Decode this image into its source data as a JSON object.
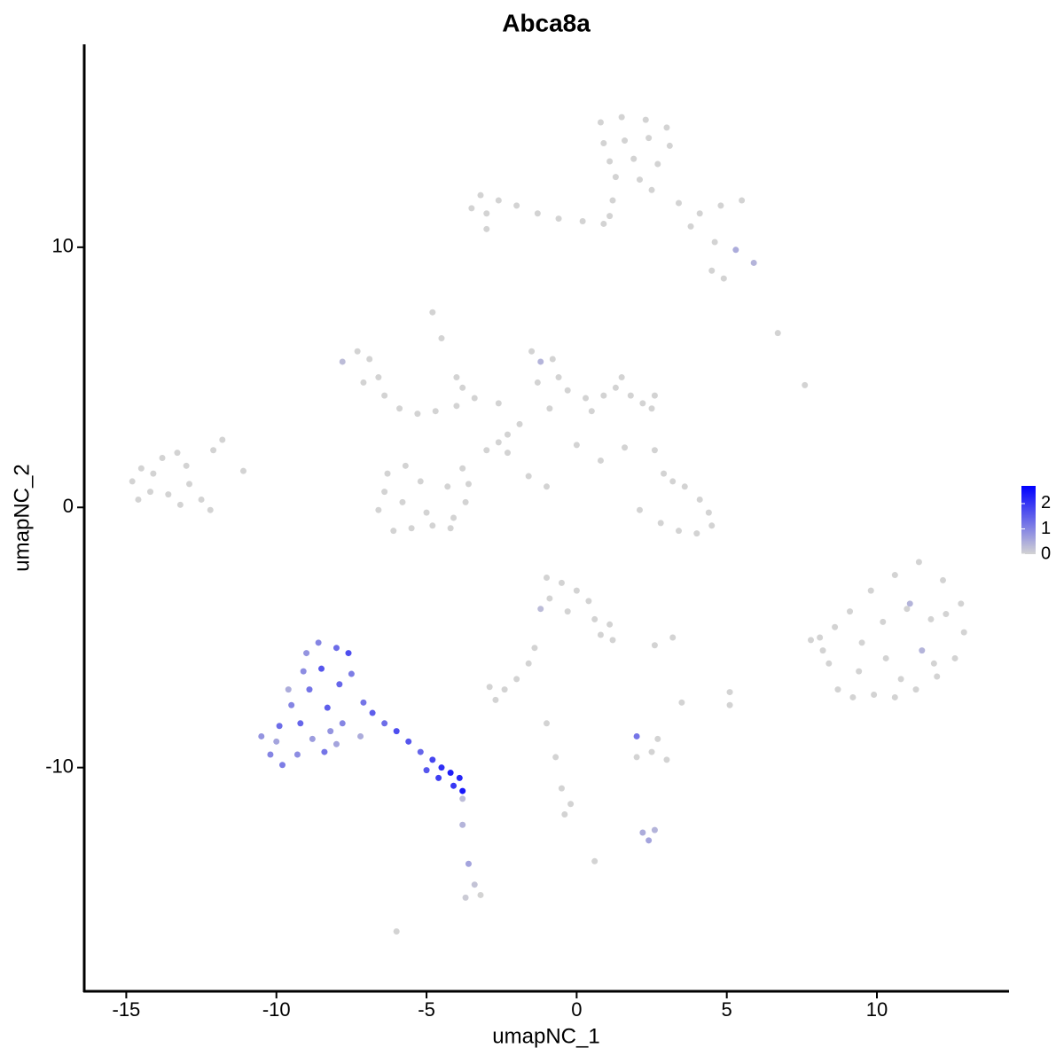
{
  "chart_data": {
    "type": "scatter",
    "title": "Abca8a",
    "x_label": "umapNC_1",
    "y_label": "umapNC_2",
    "xlim": [
      -16.4,
      14.4
    ],
    "ylim": [
      -18.6,
      17.8
    ],
    "xticks": [
      -15,
      -10,
      -5,
      0,
      5,
      10
    ],
    "yticks": [
      -10,
      0,
      10
    ],
    "color_scale": {
      "low": "#d3d3d3",
      "high": "#0000ff",
      "lim": [
        0,
        2.7
      ],
      "ticks": [
        0,
        1,
        2
      ]
    },
    "x": [
      0.8,
      1.5,
      2.3,
      3.0,
      0.9,
      1.6,
      2.4,
      3.1,
      1.1,
      1.9,
      2.7,
      1.3,
      2.1,
      1.2,
      1.1,
      0.9,
      2.5,
      3.4,
      4.1,
      4.8,
      5.5,
      3.8,
      4.6,
      5.3,
      5.9,
      4.5,
      4.9,
      -3.2,
      -2.6,
      -3.0,
      -2.0,
      -1.3,
      -0.6,
      0.2,
      -3.0,
      -3.5,
      -4.8,
      -4.5,
      -4.0,
      -3.8,
      6.7,
      7.6,
      -7.8,
      -7.3,
      -6.9,
      -6.6,
      -7.1,
      -6.4,
      -5.9,
      -5.3,
      -4.7,
      -4.0,
      -3.4,
      -2.6,
      -1.5,
      -1.2,
      -0.8,
      -0.6,
      -1.3,
      -0.3,
      0.3,
      0.9,
      1.3,
      1.8,
      2.2,
      2.5,
      2.6,
      1.5,
      0.5,
      -0.9,
      -1.9,
      -2.3,
      -2.6,
      -3.0,
      -2.3,
      -1.6,
      -1.0,
      0.0,
      0.8,
      1.6,
      -6.4,
      -6.6,
      -6.1,
      -5.5,
      -4.8,
      -4.1,
      -3.7,
      -3.6,
      -4.3,
      -5.2,
      -5.8,
      -5.0,
      -4.2,
      -6.3,
      -5.7,
      -3.8,
      2.1,
      2.8,
      3.4,
      4.0,
      4.5,
      4.4,
      3.2,
      3.6,
      2.9,
      2.6,
      4.1,
      -14.8,
      -14.5,
      -14.1,
      -13.8,
      -13.3,
      -13.0,
      -14.2,
      -13.6,
      -12.9,
      -12.5,
      -12.2,
      -13.2,
      -11.8,
      -12.1,
      -11.1,
      -14.6,
      8.1,
      8.4,
      8.7,
      9.2,
      9.9,
      10.6,
      11.3,
      12.0,
      12.6,
      12.9,
      12.8,
      12.2,
      11.4,
      10.6,
      9.8,
      9.1,
      8.6,
      9.5,
      10.2,
      11.0,
      11.8,
      11.1,
      11.5,
      10.3,
      9.4,
      11.9,
      10.8,
      12.3,
      7.8,
      8.2,
      -1.0,
      -0.5,
      0.0,
      0.4,
      -0.9,
      -0.3,
      0.6,
      -1.2,
      1.1,
      1.2,
      0.8,
      -1.4,
      -1.6,
      -2.0,
      -2.4,
      -2.9,
      -2.7,
      2.6,
      3.2,
      5.1,
      5.1,
      -1.0,
      -0.7,
      -0.5,
      -0.2,
      -0.4,
      0.6,
      2.0,
      2.5,
      3.0,
      2.7,
      3.5,
      2.2,
      2.6,
      2.4,
      2.0,
      -6.0,
      -10.5,
      -10.2,
      -9.8,
      -9.3,
      -9.9,
      -9.5,
      -9.2,
      -8.8,
      -8.4,
      -8.0,
      -7.8,
      -8.3,
      -8.9,
      -9.1,
      -9.0,
      -8.6,
      -8.0,
      -7.6,
      -7.5,
      -7.9,
      -8.5,
      -8.2,
      -7.1,
      -6.8,
      -6.4,
      -6.0,
      -5.6,
      -5.2,
      -4.8,
      -4.5,
      -4.2,
      -3.9,
      -4.1,
      -4.6,
      -5.0,
      -3.8,
      -9.6,
      -10.0,
      -7.2,
      -3.8,
      -3.8,
      -3.6,
      -3.4,
      -3.7,
      -3.2
    ],
    "y": [
      14.8,
      15,
      14.9,
      14.6,
      14,
      14.1,
      14.2,
      13.9,
      13.3,
      13.4,
      13.2,
      12.7,
      12.6,
      11.8,
      11.2,
      10.9,
      12.2,
      11.7,
      11.3,
      11.6,
      11.8,
      10.8,
      10.2,
      9.9,
      9.4,
      9.1,
      8.8,
      12,
      11.8,
      11.3,
      11.6,
      11.3,
      11.1,
      11.0,
      10.7,
      11.5,
      7.5,
      6.5,
      5.0,
      4.6,
      6.7,
      4.7,
      5.6,
      6.0,
      5.7,
      5.0,
      4.8,
      4.3,
      3.8,
      3.6,
      3.7,
      3.9,
      4.2,
      4.0,
      6.0,
      5.6,
      5.7,
      5.0,
      4.8,
      4.5,
      4.2,
      4.3,
      4.6,
      4.3,
      4.0,
      3.8,
      4.3,
      5.0,
      3.7,
      3.8,
      3.2,
      2.8,
      2.5,
      2.2,
      2.1,
      1.2,
      0.8,
      2.4,
      1.8,
      2.3,
      0.6,
      -0.1,
      -0.9,
      -0.8,
      -0.7,
      -0.4,
      0.2,
      0.9,
      0.8,
      1.0,
      0.2,
      -0.2,
      -0.8,
      1.3,
      1.6,
      1.5,
      -0.1,
      -0.6,
      -0.9,
      -1.0,
      -0.7,
      -0.2,
      1.0,
      0.8,
      1.3,
      2.2,
      0.3,
      1.0,
      1.5,
      1.3,
      1.9,
      2.1,
      1.6,
      0.6,
      0.5,
      0.9,
      0.3,
      -0.1,
      0.1,
      2.6,
      2.2,
      1.4,
      0.3,
      -5.0,
      -6.0,
      -7.0,
      -7.3,
      -7.2,
      -7.3,
      -7.0,
      -6.5,
      -5.8,
      -4.8,
      -3.7,
      -2.8,
      -2.1,
      -2.6,
      -3.2,
      -4.0,
      -4.6,
      -5.2,
      -4.4,
      -3.9,
      -4.3,
      -3.7,
      -5.5,
      -5.8,
      -6.3,
      -6.0,
      -6.6,
      -4.1,
      -5.1,
      -5.5,
      -2.7,
      -2.9,
      -3.2,
      -3.6,
      -3.5,
      -4.0,
      -4.3,
      -3.9,
      -4.5,
      -5.1,
      -4.9,
      -5.4,
      -6.0,
      -6.6,
      -7.0,
      -6.9,
      -7.4,
      -5.3,
      -5.0,
      -7.1,
      -7.6,
      -8.3,
      -9.6,
      -10.8,
      -11.4,
      -11.8,
      -13.6,
      -9.6,
      -9.4,
      -9.7,
      -8.9,
      -7.5,
      -12.5,
      -12.4,
      -12.8,
      -8.8,
      -16.3,
      -8.8,
      -9.5,
      -9.9,
      -9.5,
      -8.4,
      -7.6,
      -8.3,
      -8.9,
      -9.4,
      -9.1,
      -8.3,
      -7.7,
      -7.0,
      -6.3,
      -5.6,
      -5.2,
      -5.4,
      -5.6,
      -6.4,
      -6.8,
      -6.2,
      -8.6,
      -7.5,
      -7.9,
      -8.3,
      -8.6,
      -9.0,
      -9.4,
      -9.7,
      -10.0,
      -10.2,
      -10.4,
      -10.7,
      -10.4,
      -10.1,
      -10.9,
      -7.0,
      -9.0,
      -8.8,
      -11.2,
      -12.2,
      -13.7,
      -14.5,
      -15.0,
      -14.9
    ],
    "expression": [
      0,
      0,
      0,
      0,
      0,
      0,
      0,
      0,
      0,
      0,
      0,
      0,
      0,
      0,
      0,
      0,
      0,
      0,
      0,
      0,
      0,
      0,
      0,
      0.5,
      0.4,
      0,
      0,
      0,
      0,
      0,
      0,
      0,
      0,
      0,
      0,
      0,
      0,
      0,
      0,
      0,
      0,
      0,
      0.3,
      0,
      0,
      0,
      0,
      0,
      0,
      0,
      0,
      0,
      0,
      0,
      0,
      0.4,
      0,
      0,
      0,
      0,
      0,
      0,
      0,
      0,
      0,
      0,
      0,
      0,
      0,
      0,
      0,
      0,
      0,
      0,
      0,
      0,
      0,
      0,
      0,
      0,
      0,
      0,
      0,
      0,
      0,
      0,
      0,
      0,
      0,
      0,
      0,
      0,
      0,
      0,
      0,
      0,
      0,
      0,
      0,
      0,
      0,
      0,
      0,
      0,
      0,
      0,
      0,
      0,
      0,
      0,
      0,
      0,
      0,
      0,
      0,
      0,
      0,
      0,
      0,
      0,
      0,
      0,
      0,
      0,
      0,
      0,
      0,
      0,
      0,
      0,
      0,
      0,
      0,
      0,
      0,
      0,
      0,
      0,
      0,
      0,
      0,
      0,
      0,
      0,
      0.4,
      0.4,
      0,
      0,
      0,
      0,
      0,
      0,
      0,
      0,
      0,
      0,
      0,
      0,
      0,
      0,
      0.3,
      0,
      0,
      0,
      0,
      0,
      0,
      0,
      0,
      0,
      0,
      0,
      0,
      0,
      0,
      0,
      0,
      0,
      0,
      0,
      0,
      0,
      0,
      0,
      0,
      0.5,
      0.4,
      0.6,
      1.2,
      0,
      0.8,
      1.0,
      1.1,
      0.9,
      1.3,
      1.0,
      1.4,
      0.7,
      1.2,
      0.6,
      1.0,
      1.5,
      1.2,
      0.9,
      0.8,
      1.0,
      1.3,
      1.7,
      1.1,
      1.4,
      1.6,
      0.8,
      1.2,
      1.5,
      1.3,
      1.7,
      1.6,
      1.4,
      1.8,
      2.1,
      2.3,
      2.2,
      2.0,
      1.9,
      1.6,
      2.4,
      0.5,
      0.6,
      0.5,
      0.3,
      0.4,
      0.6,
      0.2,
      0.1,
      0
    ]
  }
}
